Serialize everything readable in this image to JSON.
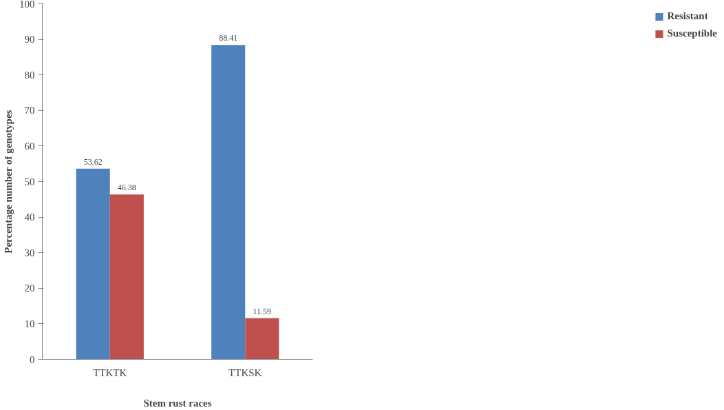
{
  "chart_data": {
    "type": "bar",
    "xlabel": "Stem rust races",
    "ylabel": "Percentage number of genotypes",
    "categories": [
      "TTKTK",
      "TTKSK"
    ],
    "series": [
      {
        "name": "Resistant",
        "color": "#4f81bd",
        "values": [
          53.62,
          88.41
        ]
      },
      {
        "name": "Susceptible",
        "color": "#c0504d",
        "values": [
          46.38,
          11.59
        ]
      }
    ],
    "ylim": [
      0,
      100
    ],
    "yticks": [
      0,
      10,
      20,
      30,
      40,
      50,
      60,
      70,
      80,
      90,
      100
    ],
    "grid": false,
    "legend": "right",
    "data_labels": true
  }
}
